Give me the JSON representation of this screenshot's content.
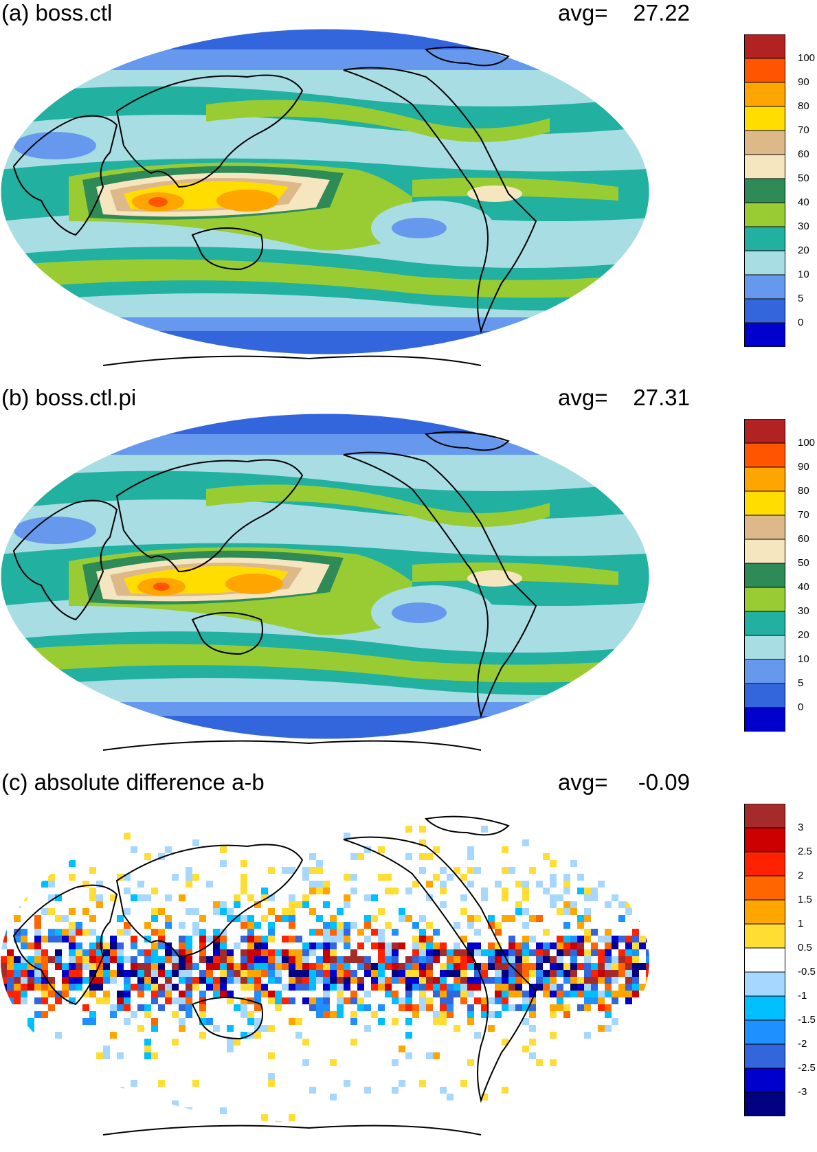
{
  "panels": [
    {
      "id": "a",
      "title": "(a) boss.ctl",
      "avg_label": "avg=",
      "avg_value": "27.22",
      "legend": {
        "colors": [
          "#0000cc",
          "#3366dd",
          "#6699ee",
          "#a8dde3",
          "#22b0a0",
          "#99cc33",
          "#2e8b57",
          "#f5e6c0",
          "#ddb98a",
          "#ffdd00",
          "#ffa500",
          "#ff5500",
          "#b22222"
        ],
        "labels": [
          "0",
          "5",
          "10",
          "20",
          "30",
          "40",
          "50",
          "60",
          "70",
          "80",
          "90",
          "100"
        ]
      }
    },
    {
      "id": "b",
      "title": "(b) boss.ctl.pi",
      "avg_label": "avg=",
      "avg_value": "27.31",
      "legend": {
        "colors": [
          "#0000cc",
          "#3366dd",
          "#6699ee",
          "#a8dde3",
          "#22b0a0",
          "#99cc33",
          "#2e8b57",
          "#f5e6c0",
          "#ddb98a",
          "#ffdd00",
          "#ffa500",
          "#ff5500",
          "#b22222"
        ],
        "labels": [
          "0",
          "5",
          "10",
          "20",
          "30",
          "40",
          "50",
          "60",
          "70",
          "80",
          "90",
          "100"
        ]
      }
    },
    {
      "id": "c",
      "title": "(c) absolute difference a-b",
      "avg_label": "avg=",
      "avg_value": "-0.09",
      "legend": {
        "colors": [
          "#000080",
          "#0000cc",
          "#3366dd",
          "#1e90ff",
          "#00bfff",
          "#a6d8ff",
          "#ffffff",
          "#ffdd33",
          "#ffa500",
          "#ff6600",
          "#ff2200",
          "#cc0000",
          "#a52a2a"
        ],
        "labels": [
          "-3",
          "-2.5",
          "-2",
          "-1.5",
          "-1",
          "-0.5",
          "0.5",
          "1",
          "1.5",
          "2",
          "2.5",
          "3"
        ]
      }
    }
  ]
}
